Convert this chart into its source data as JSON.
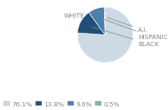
{
  "labels": [
    "WHITE",
    "BLACK",
    "HISPANIC",
    "A.I."
  ],
  "values": [
    76.1,
    13.8,
    9.6,
    0.5
  ],
  "colors": [
    "#cdd9e5",
    "#1f4e79",
    "#4a7ead",
    "#8aabbf"
  ],
  "legend_labels": [
    "76.1%",
    "13.8%",
    "9.6%",
    "0.5%"
  ],
  "legend_colors": [
    "#cdd9e5",
    "#1f4e79",
    "#4a7ead",
    "#8aabbf"
  ],
  "background_color": "#ffffff",
  "label_fontsize": 5.2,
  "legend_fontsize": 5.2,
  "startangle": 90
}
